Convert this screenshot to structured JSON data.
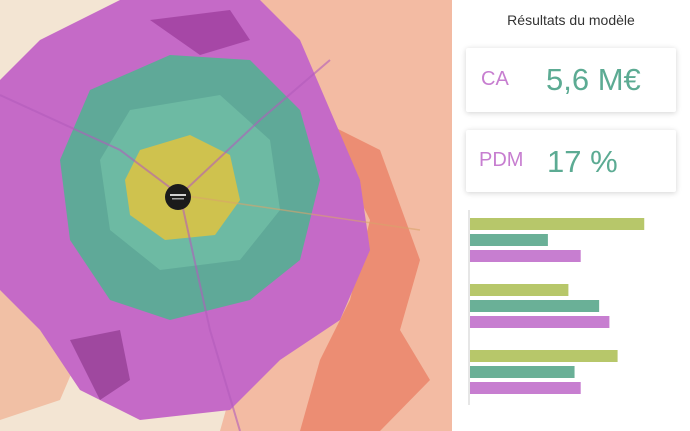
{
  "panel": {
    "title": "Résultats du modèle"
  },
  "kpis": [
    {
      "label": "CA",
      "value": "5,6 M€"
    },
    {
      "label": "PDM",
      "value": "17 %"
    }
  ],
  "colors": {
    "label": "#c77ed0",
    "value": "#5cab93",
    "series": [
      "#b7c76a",
      "#6ab097",
      "#c77ed0"
    ],
    "map_core": "#cfc24e",
    "map_teal": "#5fa998",
    "map_magenta": "#c56ac7",
    "map_salmon": "#ec9f85"
  },
  "map": {
    "marker_icon": "store-marker-icon"
  },
  "chart_data": {
    "type": "bar",
    "orientation": "horizontal",
    "categories": [
      "",
      "",
      ""
    ],
    "series": [
      {
        "values": [
          0.85,
          0.48,
          0.72
        ]
      },
      {
        "values": [
          0.38,
          0.63,
          0.51
        ]
      },
      {
        "values": [
          0.54,
          0.68,
          0.54
        ]
      }
    ],
    "xlim": [
      0,
      1
    ],
    "grid": false
  }
}
